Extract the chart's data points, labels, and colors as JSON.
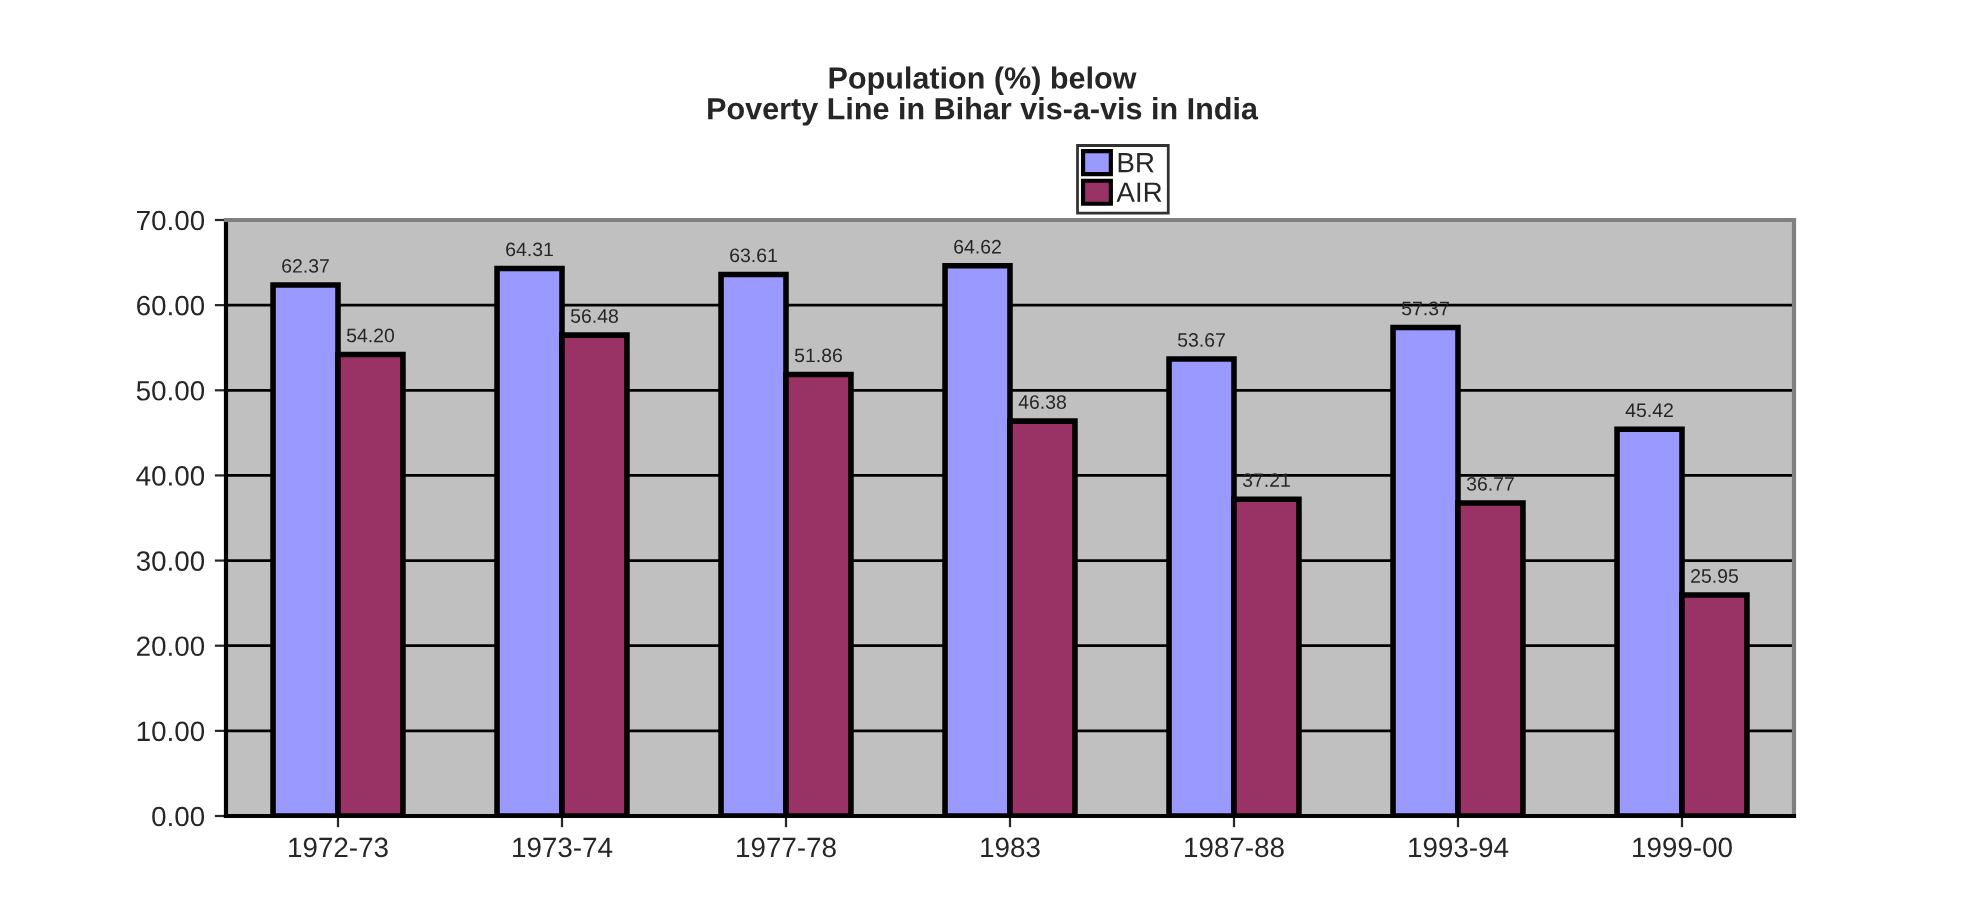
{
  "chart_data": {
    "type": "bar",
    "title": "Population (%) below\nPoverty Line in Bihar vis-a-vis in India",
    "categories": [
      "1972-73",
      "1973-74",
      "1977-78",
      "1983",
      "1987-88",
      "1993-94",
      "1999-00"
    ],
    "series": [
      {
        "name": "BR",
        "color": "#9999ff",
        "values": [
          62.37,
          64.31,
          63.61,
          64.62,
          53.67,
          57.37,
          45.42
        ],
        "value_labels": [
          "62.37",
          "64.31",
          "63.61",
          "64.62",
          "53.67",
          "57.37",
          "45.42"
        ]
      },
      {
        "name": "AIR",
        "color": "#993366",
        "values": [
          54.2,
          56.48,
          51.86,
          46.38,
          37.21,
          36.77,
          25.95
        ],
        "value_labels": [
          "54.20",
          "56.48",
          "51.86",
          "46.38",
          "37.21",
          "36.77",
          "25.95"
        ]
      }
    ],
    "ylim": [
      0,
      70
    ],
    "yticks": [
      {
        "value": 0,
        "label": "0.00"
      },
      {
        "value": 10,
        "label": "10.00"
      },
      {
        "value": 20,
        "label": "20.00"
      },
      {
        "value": 30,
        "label": "30.00"
      },
      {
        "value": 40,
        "label": "40.00"
      },
      {
        "value": 50,
        "label": "50.00"
      },
      {
        "value": 60,
        "label": "60.00"
      },
      {
        "value": 70,
        "label": "70.00"
      }
    ],
    "grid": "y",
    "legend": "top"
  }
}
